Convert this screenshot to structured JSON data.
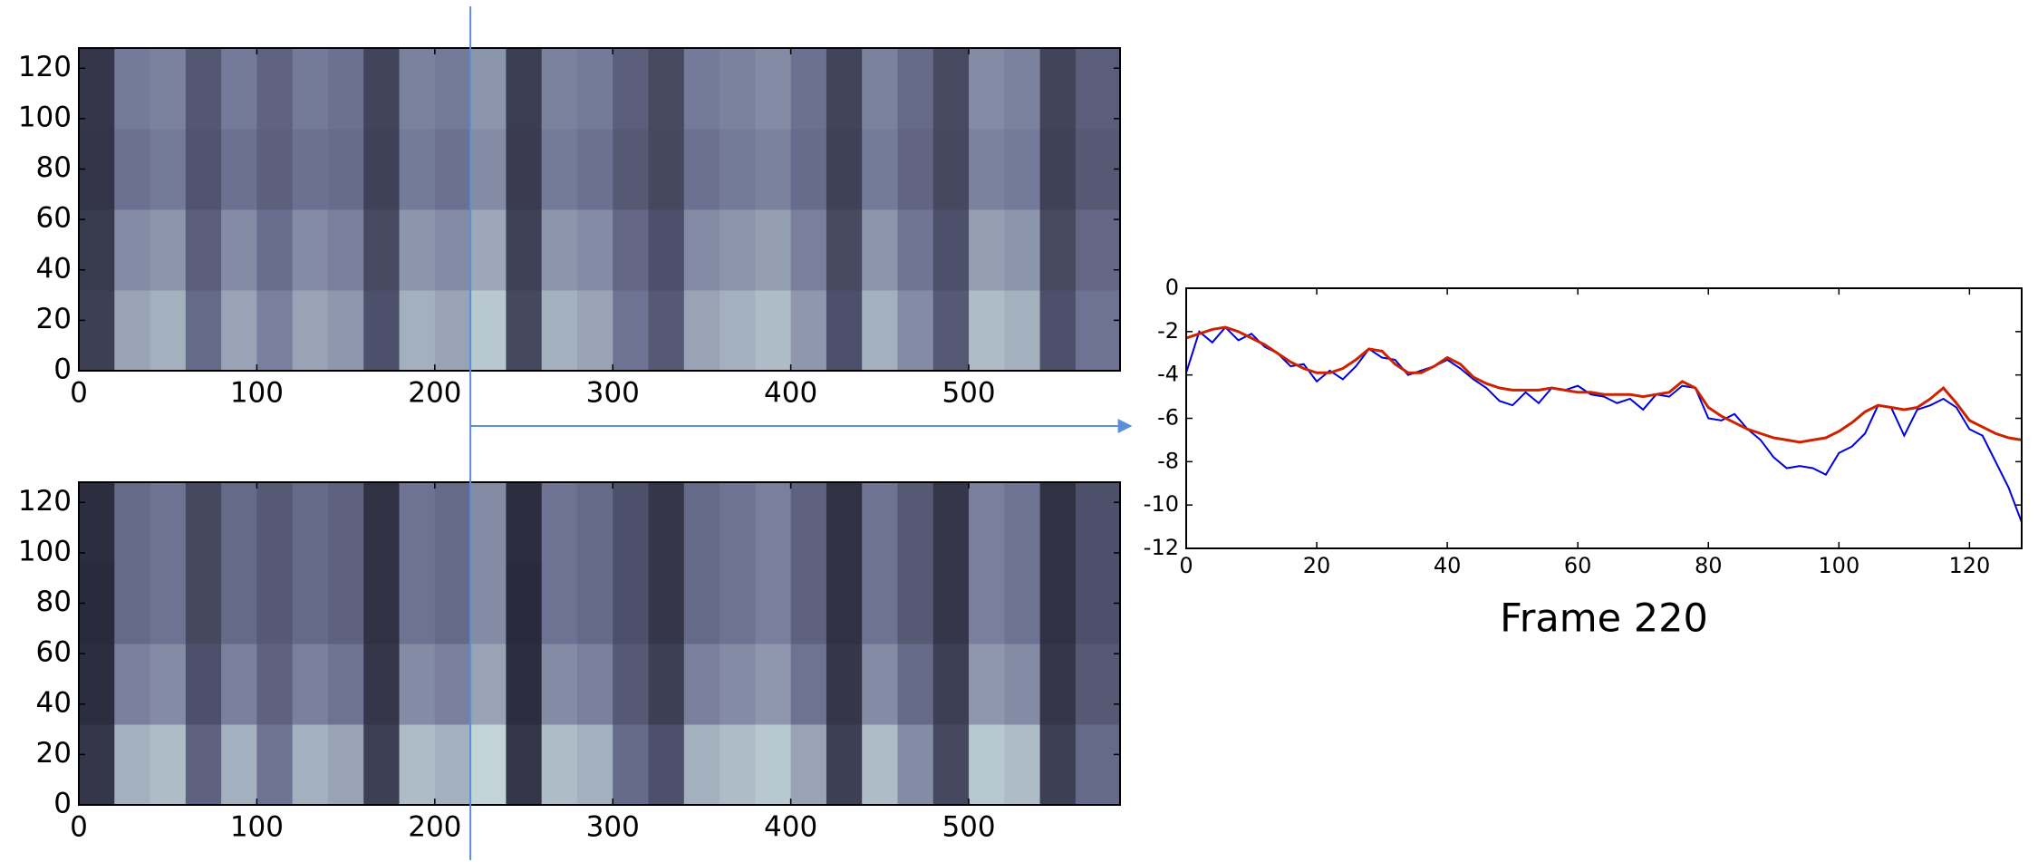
{
  "chart_data": [
    {
      "type": "heatmap",
      "colormap": "bone",
      "zlim": [
        0,
        1
      ],
      "xlim": [
        0,
        585
      ],
      "xticks": [
        0,
        100,
        200,
        300,
        400,
        500
      ],
      "ylim": [
        0,
        128
      ],
      "yticks": [
        0,
        20,
        40,
        60,
        80,
        100,
        120
      ],
      "xbins": [
        0,
        20,
        40,
        60,
        80,
        100,
        120,
        140,
        160,
        180,
        200,
        220,
        240,
        260,
        280,
        300,
        320,
        340,
        360,
        380,
        400,
        420,
        440,
        460,
        480,
        500,
        520,
        540,
        560,
        585
      ],
      "ybins": [
        0,
        32,
        64,
        96,
        128
      ],
      "marker": 220,
      "values": [
        [
          0.2,
          0.7,
          0.75,
          0.45,
          0.7,
          0.55,
          0.7,
          0.65,
          0.3,
          0.75,
          0.7,
          0.85,
          0.25,
          0.75,
          0.7,
          0.5,
          0.35,
          0.7,
          0.75,
          0.8,
          0.65,
          0.3,
          0.75,
          0.6,
          0.35,
          0.8,
          0.75,
          0.3,
          0.5
        ],
        [
          0.17,
          0.6,
          0.64,
          0.38,
          0.6,
          0.47,
          0.6,
          0.55,
          0.26,
          0.64,
          0.6,
          0.72,
          0.21,
          0.64,
          0.6,
          0.43,
          0.3,
          0.6,
          0.64,
          0.68,
          0.55,
          0.26,
          0.64,
          0.51,
          0.3,
          0.68,
          0.64,
          0.26,
          0.43
        ],
        [
          0.14,
          0.49,
          0.53,
          0.32,
          0.49,
          0.39,
          0.49,
          0.46,
          0.21,
          0.53,
          0.49,
          0.6,
          0.18,
          0.53,
          0.49,
          0.35,
          0.25,
          0.49,
          0.53,
          0.56,
          0.46,
          0.21,
          0.53,
          0.42,
          0.25,
          0.56,
          0.53,
          0.21,
          0.35
        ],
        [
          0.15,
          0.53,
          0.56,
          0.34,
          0.53,
          0.41,
          0.53,
          0.49,
          0.23,
          0.56,
          0.53,
          0.64,
          0.19,
          0.56,
          0.53,
          0.38,
          0.26,
          0.53,
          0.56,
          0.6,
          0.49,
          0.23,
          0.56,
          0.45,
          0.26,
          0.6,
          0.56,
          0.23,
          0.38
        ]
      ]
    },
    {
      "type": "heatmap",
      "colormap": "bone",
      "zlim": [
        0,
        1
      ],
      "xlim": [
        0,
        585
      ],
      "xticks": [
        0,
        100,
        200,
        300,
        400,
        500
      ],
      "ylim": [
        0,
        128
      ],
      "yticks": [
        0,
        20,
        40,
        60,
        80,
        100,
        120
      ],
      "xbins": [
        0,
        20,
        40,
        60,
        80,
        100,
        120,
        140,
        160,
        180,
        200,
        220,
        240,
        260,
        280,
        300,
        320,
        340,
        360,
        380,
        400,
        420,
        440,
        460,
        480,
        500,
        520,
        540,
        560,
        585
      ],
      "ybins": [
        0,
        32,
        64,
        96,
        128
      ],
      "values": [
        [
          0.15,
          0.75,
          0.8,
          0.4,
          0.75,
          0.5,
          0.75,
          0.7,
          0.2,
          0.8,
          0.75,
          0.9,
          0.15,
          0.8,
          0.75,
          0.45,
          0.3,
          0.75,
          0.8,
          0.85,
          0.7,
          0.2,
          0.8,
          0.6,
          0.25,
          0.85,
          0.8,
          0.2,
          0.45
        ],
        [
          0.1,
          0.55,
          0.6,
          0.3,
          0.55,
          0.4,
          0.55,
          0.5,
          0.15,
          0.6,
          0.55,
          0.7,
          0.1,
          0.6,
          0.55,
          0.35,
          0.2,
          0.55,
          0.6,
          0.65,
          0.5,
          0.15,
          0.6,
          0.45,
          0.2,
          0.65,
          0.6,
          0.15,
          0.35
        ],
        [
          0.08,
          0.45,
          0.5,
          0.25,
          0.45,
          0.35,
          0.45,
          0.4,
          0.12,
          0.5,
          0.45,
          0.6,
          0.08,
          0.5,
          0.45,
          0.3,
          0.15,
          0.45,
          0.5,
          0.55,
          0.4,
          0.12,
          0.5,
          0.35,
          0.15,
          0.55,
          0.5,
          0.12,
          0.3
        ],
        [
          0.1,
          0.45,
          0.5,
          0.25,
          0.45,
          0.35,
          0.45,
          0.4,
          0.12,
          0.5,
          0.45,
          0.6,
          0.1,
          0.5,
          0.45,
          0.3,
          0.15,
          0.45,
          0.5,
          0.55,
          0.4,
          0.12,
          0.5,
          0.35,
          0.15,
          0.55,
          0.5,
          0.12,
          0.3
        ]
      ]
    },
    {
      "type": "line",
      "title": "Frame 220",
      "xlim": [
        0,
        128
      ],
      "xticks": [
        0,
        20,
        40,
        60,
        80,
        100,
        120
      ],
      "ylim": [
        -12,
        0
      ],
      "yticks": [
        0,
        -2,
        -4,
        -6,
        -8,
        -10,
        -12
      ],
      "x": [
        0,
        2,
        4,
        6,
        8,
        10,
        12,
        14,
        16,
        18,
        20,
        22,
        24,
        26,
        28,
        30,
        32,
        34,
        36,
        38,
        40,
        42,
        44,
        46,
        48,
        50,
        52,
        54,
        56,
        58,
        60,
        62,
        64,
        66,
        68,
        70,
        72,
        74,
        76,
        78,
        80,
        82,
        84,
        86,
        88,
        90,
        92,
        94,
        96,
        98,
        100,
        102,
        104,
        106,
        108,
        110,
        112,
        114,
        116,
        118,
        120,
        122,
        124,
        126,
        128
      ],
      "series": [
        {
          "color": "#0000dd",
          "values": [
            -3.9,
            -2.0,
            -2.5,
            -1.8,
            -2.4,
            -2.1,
            -2.7,
            -3.0,
            -3.6,
            -3.5,
            -4.3,
            -3.8,
            -4.2,
            -3.6,
            -2.8,
            -3.2,
            -3.3,
            -4.0,
            -3.8,
            -3.6,
            -3.3,
            -3.7,
            -4.2,
            -4.6,
            -5.2,
            -5.4,
            -4.8,
            -5.3,
            -4.6,
            -4.7,
            -4.5,
            -4.9,
            -5.0,
            -5.3,
            -5.1,
            -5.6,
            -4.9,
            -5.0,
            -4.5,
            -4.6,
            -6.0,
            -6.1,
            -5.8,
            -6.5,
            -7.0,
            -7.8,
            -8.3,
            -8.2,
            -8.3,
            -8.6,
            -7.6,
            -7.3,
            -6.7,
            -5.4,
            -5.5,
            -6.8,
            -5.6,
            -5.4,
            -5.1,
            -5.5,
            -6.5,
            -6.8,
            -8.0,
            -9.2,
            -10.8
          ]
        },
        {
          "color": "#cc2200",
          "values": [
            -2.3,
            -2.1,
            -1.9,
            -1.8,
            -2.0,
            -2.3,
            -2.6,
            -3.0,
            -3.4,
            -3.7,
            -3.9,
            -3.9,
            -3.7,
            -3.3,
            -2.8,
            -2.9,
            -3.5,
            -3.9,
            -3.9,
            -3.6,
            -3.2,
            -3.5,
            -4.1,
            -4.4,
            -4.6,
            -4.7,
            -4.7,
            -4.7,
            -4.6,
            -4.7,
            -4.8,
            -4.8,
            -4.9,
            -4.9,
            -4.9,
            -5.0,
            -4.9,
            -4.8,
            -4.3,
            -4.6,
            -5.5,
            -5.9,
            -6.2,
            -6.5,
            -6.7,
            -6.9,
            -7.0,
            -7.1,
            -7.0,
            -6.9,
            -6.6,
            -6.2,
            -5.7,
            -5.4,
            -5.5,
            -5.6,
            -5.5,
            -5.1,
            -4.6,
            -5.3,
            -6.1,
            -6.4,
            -6.7,
            -6.9,
            -7.0
          ]
        }
      ]
    }
  ]
}
